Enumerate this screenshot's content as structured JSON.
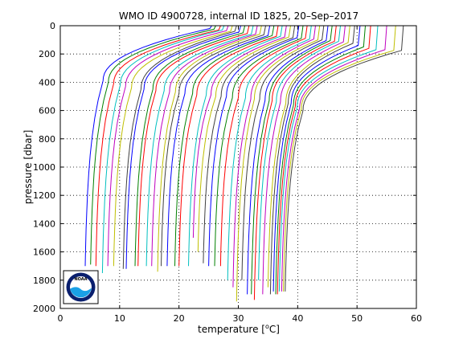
{
  "chart_data": {
    "type": "line",
    "title": "WMO ID 4900728, internal ID 1825, 20–Sep–2017",
    "xlabel_main": "temperature [",
    "xlabel_sup": "o",
    "xlabel_unit": "C]",
    "ylabel": "pressure [dbar]",
    "xlim": [
      0,
      60
    ],
    "ylim": [
      2000,
      0
    ],
    "y_reversed": true,
    "grid": true,
    "x_ticks": [
      0,
      10,
      20,
      30,
      40,
      50,
      60
    ],
    "y_ticks": [
      0,
      200,
      400,
      600,
      800,
      1000,
      1200,
      1400,
      1600,
      1800,
      2000
    ],
    "offset_per_profile_C": 1,
    "series_colors": [
      "#0000ff",
      "#008000",
      "#ff0000",
      "#00bfbf",
      "#bf00bf",
      "#bfbf00",
      "#404040"
    ],
    "series": [
      {
        "surface_temp": 25.5,
        "mix_depth": 20,
        "thermo_depth": 240,
        "deep_temp": 4.2,
        "max_p": 1700
      },
      {
        "surface_temp": 26.2,
        "mix_depth": 25,
        "thermo_depth": 250,
        "deep_temp": 5.1,
        "max_p": 1690
      },
      {
        "surface_temp": 27.0,
        "mix_depth": 30,
        "thermo_depth": 260,
        "deep_temp": 6.0,
        "max_p": 1700
      },
      {
        "surface_temp": 27.6,
        "mix_depth": 30,
        "thermo_depth": 270,
        "deep_temp": 7.1,
        "max_p": 1750
      },
      {
        "surface_temp": 28.3,
        "mix_depth": 35,
        "thermo_depth": 280,
        "deep_temp": 8.0,
        "max_p": 1700
      },
      {
        "surface_temp": 29.0,
        "mix_depth": 40,
        "thermo_depth": 290,
        "deep_temp": 9.0,
        "max_p": 1700
      },
      {
        "surface_temp": 29.7,
        "mix_depth": 40,
        "thermo_depth": 300,
        "deep_temp": 10.6,
        "max_p": 1720
      },
      {
        "surface_temp": 30.4,
        "mix_depth": 45,
        "thermo_depth": 300,
        "deep_temp": 11.1,
        "max_p": 1720
      },
      {
        "surface_temp": 31.1,
        "mix_depth": 50,
        "thermo_depth": 300,
        "deep_temp": 12.6,
        "max_p": 1700
      },
      {
        "surface_temp": 31.8,
        "mix_depth": 55,
        "thermo_depth": 310,
        "deep_temp": 13.1,
        "max_p": 1700
      },
      {
        "surface_temp": 32.5,
        "mix_depth": 60,
        "thermo_depth": 310,
        "deep_temp": 14.5,
        "max_p": 1700
      },
      {
        "surface_temp": 33.2,
        "mix_depth": 60,
        "thermo_depth": 320,
        "deep_temp": 15.4,
        "max_p": 1700
      },
      {
        "surface_temp": 33.9,
        "mix_depth": 60,
        "thermo_depth": 320,
        "deep_temp": 16.4,
        "max_p": 1740
      },
      {
        "surface_temp": 34.6,
        "mix_depth": 65,
        "thermo_depth": 330,
        "deep_temp": 17.0,
        "max_p": 1700
      },
      {
        "surface_temp": 35.3,
        "mix_depth": 70,
        "thermo_depth": 330,
        "deep_temp": 18.0,
        "max_p": 1700
      },
      {
        "surface_temp": 36.0,
        "mix_depth": 70,
        "thermo_depth": 330,
        "deep_temp": 19.3,
        "max_p": 1700
      },
      {
        "surface_temp": 36.7,
        "mix_depth": 75,
        "thermo_depth": 340,
        "deep_temp": 20.0,
        "max_p": 1700
      },
      {
        "surface_temp": 37.4,
        "mix_depth": 75,
        "thermo_depth": 340,
        "deep_temp": 21.6,
        "max_p": 1700
      },
      {
        "surface_temp": 38.1,
        "mix_depth": 80,
        "thermo_depth": 340,
        "deep_temp": 22.4,
        "max_p": 1500
      },
      {
        "surface_temp": 38.8,
        "mix_depth": 80,
        "thermo_depth": 350,
        "deep_temp": 23.2,
        "max_p": 1600
      },
      {
        "surface_temp": 39.5,
        "mix_depth": 85,
        "thermo_depth": 350,
        "deep_temp": 24.1,
        "max_p": 1680
      },
      {
        "surface_temp": 40.2,
        "mix_depth": 85,
        "thermo_depth": 350,
        "deep_temp": 25.0,
        "max_p": 1700
      },
      {
        "surface_temp": 40.9,
        "mix_depth": 90,
        "thermo_depth": 360,
        "deep_temp": 26.0,
        "max_p": 1700
      },
      {
        "surface_temp": 41.6,
        "mix_depth": 90,
        "thermo_depth": 360,
        "deep_temp": 27.0,
        "max_p": 1700
      },
      {
        "surface_temp": 42.3,
        "mix_depth": 95,
        "thermo_depth": 360,
        "deep_temp": 28.2,
        "max_p": 1800
      },
      {
        "surface_temp": 43.0,
        "mix_depth": 95,
        "thermo_depth": 370,
        "deep_temp": 29.1,
        "max_p": 1850
      },
      {
        "surface_temp": 43.7,
        "mix_depth": 100,
        "thermo_depth": 370,
        "deep_temp": 29.7,
        "max_p": 1950
      },
      {
        "surface_temp": 44.4,
        "mix_depth": 100,
        "thermo_depth": 370,
        "deep_temp": 30.6,
        "max_p": 1800
      },
      {
        "surface_temp": 45.1,
        "mix_depth": 105,
        "thermo_depth": 380,
        "deep_temp": 31.5,
        "max_p": 1900
      },
      {
        "surface_temp": 45.8,
        "mix_depth": 105,
        "thermo_depth": 380,
        "deep_temp": 32.2,
        "max_p": 1900
      },
      {
        "surface_temp": 46.5,
        "mix_depth": 110,
        "thermo_depth": 380,
        "deep_temp": 32.7,
        "max_p": 1940
      },
      {
        "surface_temp": 47.2,
        "mix_depth": 110,
        "thermo_depth": 390,
        "deep_temp": 33.4,
        "max_p": 1800
      },
      {
        "surface_temp": 48.0,
        "mix_depth": 115,
        "thermo_depth": 390,
        "deep_temp": 34.1,
        "max_p": 1900
      },
      {
        "surface_temp": 48.8,
        "mix_depth": 120,
        "thermo_depth": 400,
        "deep_temp": 35.0,
        "max_p": 1850
      },
      {
        "surface_temp": 49.6,
        "mix_depth": 125,
        "thermo_depth": 400,
        "deep_temp": 35.4,
        "max_p": 1900
      },
      {
        "surface_temp": 50.5,
        "mix_depth": 140,
        "thermo_depth": 400,
        "deep_temp": 35.9,
        "max_p": 1880
      },
      {
        "surface_temp": 51.4,
        "mix_depth": 150,
        "thermo_depth": 410,
        "deep_temp": 36.3,
        "max_p": 1900
      },
      {
        "surface_temp": 52.3,
        "mix_depth": 160,
        "thermo_depth": 420,
        "deep_temp": 36.6,
        "max_p": 1900
      },
      {
        "surface_temp": 53.5,
        "mix_depth": 170,
        "thermo_depth": 430,
        "deep_temp": 36.9,
        "max_p": 1880
      },
      {
        "surface_temp": 55.0,
        "mix_depth": 170,
        "thermo_depth": 440,
        "deep_temp": 37.3,
        "max_p": 1880
      },
      {
        "surface_temp": 56.5,
        "mix_depth": 175,
        "thermo_depth": 440,
        "deep_temp": 37.6,
        "max_p": 1880
      },
      {
        "surface_temp": 57.8,
        "mix_depth": 175,
        "thermo_depth": 450,
        "deep_temp": 37.9,
        "max_p": 1880
      }
    ]
  },
  "logo": {
    "text": "NOAA",
    "ring_color": "#0a1f6e",
    "sea_color": "#1aa0e6",
    "gull_color": "#ffffff"
  }
}
